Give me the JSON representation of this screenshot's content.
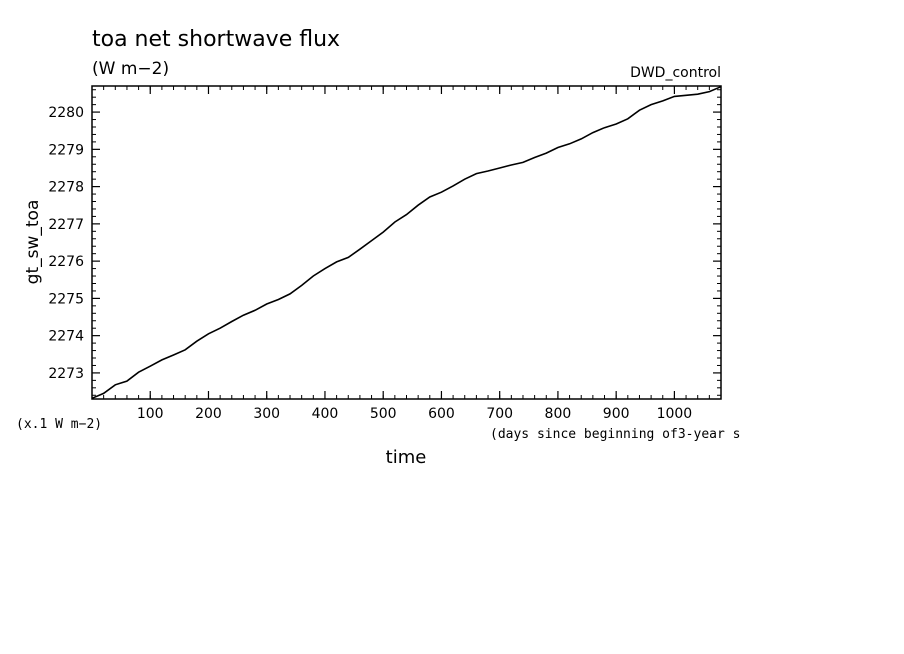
{
  "chart_data": {
    "type": "line",
    "title": "toa net shortwave flux",
    "units": "(W m−2)",
    "run_label": "DWD_control",
    "ylabel": "gt_sw_toa",
    "y_scale_note": "(x.1 W m−2)",
    "xlabel": "time",
    "x_units_note": "(days since beginning of3-year s",
    "xlim": [
      0,
      1080
    ],
    "ylim": [
      2272.3,
      2280.7
    ],
    "x_ticks": [
      100,
      200,
      300,
      400,
      500,
      600,
      700,
      800,
      900,
      1000
    ],
    "y_ticks": [
      2273,
      2274,
      2275,
      2276,
      2277,
      2278,
      2279,
      2280
    ],
    "grid": false,
    "series": [
      {
        "color": "#000000",
        "x": [
          0,
          20,
          40,
          60,
          80,
          100,
          120,
          140,
          160,
          180,
          200,
          220,
          240,
          260,
          280,
          300,
          320,
          340,
          360,
          380,
          400,
          420,
          440,
          460,
          480,
          500,
          520,
          540,
          560,
          580,
          600,
          620,
          640,
          660,
          680,
          700,
          720,
          740,
          760,
          780,
          800,
          820,
          840,
          860,
          880,
          900,
          920,
          940,
          960,
          980,
          1000,
          1020,
          1040,
          1060,
          1080
        ],
        "y": [
          2272.32,
          2272.45,
          2272.68,
          2272.78,
          2273.02,
          2273.18,
          2273.35,
          2273.48,
          2273.62,
          2273.85,
          2274.05,
          2274.2,
          2274.38,
          2274.55,
          2274.68,
          2274.85,
          2274.97,
          2275.12,
          2275.35,
          2275.6,
          2275.8,
          2275.98,
          2276.1,
          2276.32,
          2276.55,
          2276.78,
          2277.05,
          2277.25,
          2277.5,
          2277.72,
          2277.85,
          2278.02,
          2278.2,
          2278.35,
          2278.42,
          2278.5,
          2278.58,
          2278.65,
          2278.78,
          2278.9,
          2279.05,
          2279.15,
          2279.28,
          2279.45,
          2279.58,
          2279.68,
          2279.82,
          2280.05,
          2280.2,
          2280.3,
          2280.42,
          2280.45,
          2280.48,
          2280.55,
          2280.68
        ]
      }
    ]
  }
}
